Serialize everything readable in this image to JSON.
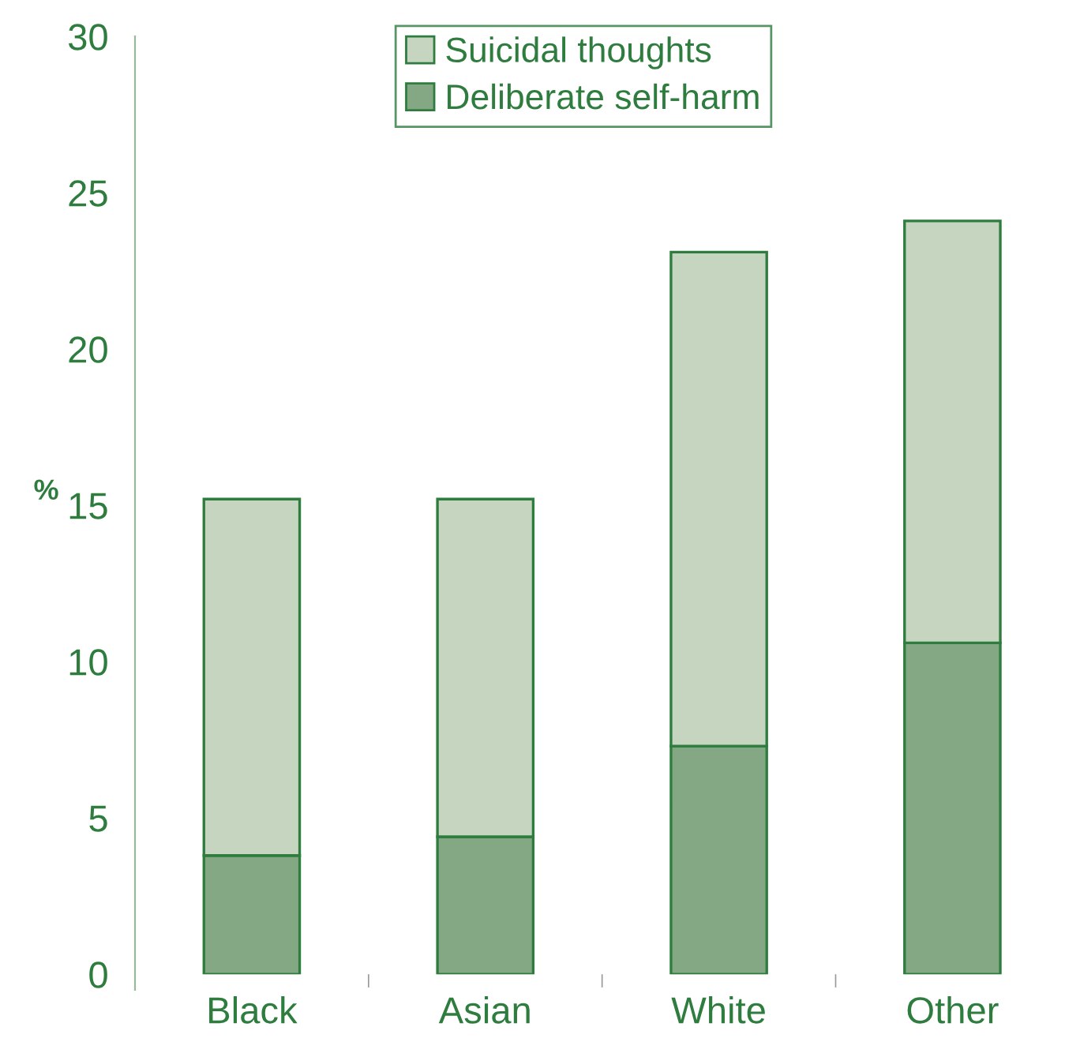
{
  "chart_data": {
    "type": "bar",
    "stacked": true,
    "ylabel": "%",
    "categories": [
      "Black",
      "Asian",
      "White",
      "Other"
    ],
    "series": [
      {
        "name": "Deliberate self-harm",
        "color": "#84a884",
        "values": [
          3.8,
          4.4,
          7.3,
          10.6
        ]
      },
      {
        "name": "Suicidal thoughts",
        "color": "#c5d5c0",
        "values": [
          11.4,
          10.8,
          15.8,
          13.5
        ]
      }
    ],
    "ylim": [
      0,
      30
    ],
    "yticks": [
      0,
      5,
      10,
      15,
      20,
      25,
      30
    ],
    "grid": false,
    "legend": "top"
  }
}
